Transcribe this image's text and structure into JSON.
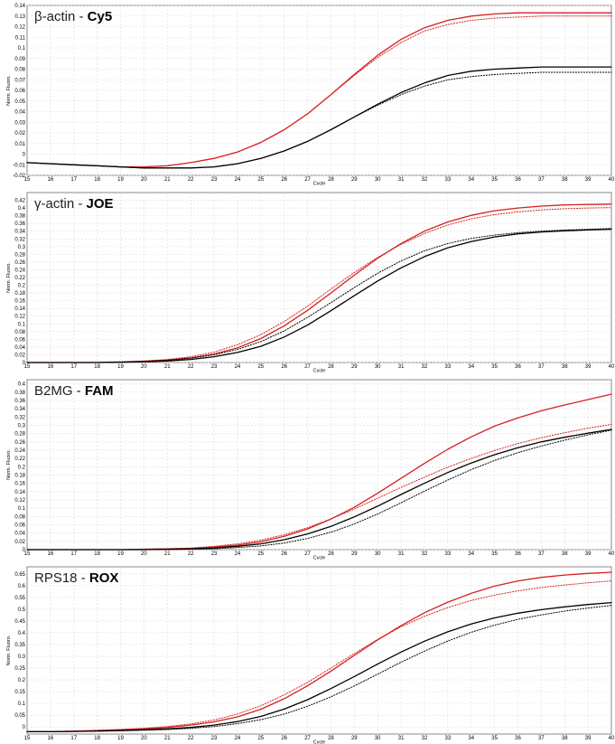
{
  "chart_data": [
    {
      "type": "line",
      "title_target": "β-actin",
      "title_sep": " - ",
      "title_dye": "Cy5",
      "xlabel": "Cycle",
      "ylabel": "Norm. Fluoro.",
      "xlim": [
        15,
        40
      ],
      "ylim": [
        -0.02,
        0.14
      ],
      "xticks": [
        "15",
        "16",
        "17",
        "18",
        "19",
        "20",
        "21",
        "22",
        "23",
        "24",
        "25",
        "26",
        "27",
        "28",
        "29",
        "30",
        "31",
        "32",
        "33",
        "34",
        "35",
        "36",
        "37",
        "38",
        "39",
        "40"
      ],
      "yticks": [
        "-0.02",
        "-0.01",
        "0",
        "0.01",
        "0.02",
        "0.03",
        "0.04",
        "0.05",
        "0.06",
        "0.07",
        "0.08",
        "0.09",
        "0.1",
        "0.11",
        "0.12",
        "0.13",
        "0.14"
      ],
      "x": [
        15,
        16,
        17,
        18,
        19,
        20,
        21,
        22,
        23,
        24,
        25,
        26,
        27,
        28,
        29,
        30,
        31,
        32,
        33,
        34,
        35,
        36,
        37,
        38,
        39,
        40
      ],
      "series": [
        {
          "color": "#d42020",
          "style": "solid",
          "values": [
            -0.008,
            -0.009,
            -0.01,
            -0.011,
            -0.012,
            -0.012,
            -0.011,
            -0.008,
            -0.004,
            0.002,
            0.011,
            0.023,
            0.038,
            0.056,
            0.075,
            0.093,
            0.108,
            0.119,
            0.126,
            0.13,
            0.132,
            0.133,
            0.133,
            0.133,
            0.133,
            0.133
          ]
        },
        {
          "color": "#d42020",
          "style": "dotted",
          "values": [
            -0.008,
            -0.009,
            -0.01,
            -0.011,
            -0.012,
            -0.012,
            -0.011,
            -0.008,
            -0.004,
            0.002,
            0.011,
            0.023,
            0.038,
            0.056,
            0.074,
            0.091,
            0.105,
            0.116,
            0.122,
            0.126,
            0.128,
            0.129,
            0.13,
            0.13,
            0.13,
            0.13
          ]
        },
        {
          "color": "#000000",
          "style": "solid",
          "values": [
            -0.008,
            -0.009,
            -0.01,
            -0.011,
            -0.012,
            -0.013,
            -0.013,
            -0.013,
            -0.012,
            -0.009,
            -0.004,
            0.003,
            0.012,
            0.023,
            0.035,
            0.047,
            0.058,
            0.067,
            0.074,
            0.078,
            0.08,
            0.081,
            0.082,
            0.082,
            0.082,
            0.082
          ]
        },
        {
          "color": "#000000",
          "style": "dotted",
          "values": [
            -0.008,
            -0.009,
            -0.01,
            -0.011,
            -0.012,
            -0.013,
            -0.013,
            -0.013,
            -0.012,
            -0.009,
            -0.004,
            0.003,
            0.012,
            0.023,
            0.035,
            0.046,
            0.056,
            0.064,
            0.07,
            0.073,
            0.075,
            0.076,
            0.077,
            0.077,
            0.077,
            0.077
          ]
        }
      ]
    },
    {
      "type": "line",
      "title_target": "γ-actin",
      "title_sep": " - ",
      "title_dye": "JOE",
      "xlabel": "Cycle",
      "ylabel": "Norm. Fluoro.",
      "xlim": [
        15,
        40
      ],
      "ylim": [
        0,
        0.44
      ],
      "xticks": [
        "15",
        "16",
        "17",
        "18",
        "19",
        "20",
        "21",
        "22",
        "23",
        "24",
        "25",
        "26",
        "27",
        "28",
        "29",
        "30",
        "31",
        "32",
        "33",
        "34",
        "35",
        "36",
        "37",
        "38",
        "39",
        "40"
      ],
      "yticks": [
        "0",
        "0.02",
        "0.04",
        "0.06",
        "0.08",
        "0.1",
        "0.12",
        "0.14",
        "0.16",
        "0.18",
        "0.2",
        "0.22",
        "0.24",
        "0.26",
        "0.28",
        "0.3",
        "0.32",
        "0.34",
        "0.36",
        "0.38",
        "0.4",
        "0.42"
      ],
      "x": [
        15,
        16,
        17,
        18,
        19,
        20,
        21,
        22,
        23,
        24,
        25,
        26,
        27,
        28,
        29,
        30,
        31,
        32,
        33,
        34,
        35,
        36,
        37,
        38,
        39,
        40
      ],
      "series": [
        {
          "color": "#d42020",
          "style": "solid",
          "values": [
            0,
            0,
            0,
            0,
            0.001,
            0.003,
            0.006,
            0.012,
            0.022,
            0.038,
            0.062,
            0.095,
            0.135,
            0.18,
            0.226,
            0.27,
            0.308,
            0.34,
            0.364,
            0.381,
            0.393,
            0.4,
            0.405,
            0.408,
            0.409,
            0.41
          ]
        },
        {
          "color": "#d42020",
          "style": "dotted",
          "values": [
            0,
            0,
            0,
            0,
            0.002,
            0.004,
            0.008,
            0.015,
            0.027,
            0.046,
            0.072,
            0.106,
            0.146,
            0.19,
            0.233,
            0.272,
            0.306,
            0.334,
            0.356,
            0.372,
            0.383,
            0.39,
            0.395,
            0.398,
            0.4,
            0.401
          ]
        },
        {
          "color": "#000000",
          "style": "solid",
          "values": [
            0,
            0,
            0,
            0,
            0.001,
            0.002,
            0.004,
            0.008,
            0.015,
            0.026,
            0.042,
            0.066,
            0.097,
            0.134,
            0.173,
            0.211,
            0.245,
            0.274,
            0.297,
            0.313,
            0.325,
            0.333,
            0.338,
            0.341,
            0.343,
            0.345
          ]
        },
        {
          "color": "#000000",
          "style": "dotted",
          "values": [
            0,
            0,
            0,
            0,
            0.001,
            0.003,
            0.006,
            0.011,
            0.02,
            0.034,
            0.054,
            0.082,
            0.117,
            0.155,
            0.194,
            0.231,
            0.263,
            0.289,
            0.308,
            0.321,
            0.33,
            0.336,
            0.34,
            0.343,
            0.345,
            0.347
          ]
        }
      ]
    },
    {
      "type": "line",
      "title_target": "B2MG",
      "title_sep": " - ",
      "title_dye": "FAM",
      "xlabel": "Cycle",
      "ylabel": "Norm. Fluoro.",
      "xlim": [
        15,
        40
      ],
      "ylim": [
        0,
        0.41
      ],
      "xticks": [
        "15",
        "16",
        "17",
        "18",
        "19",
        "20",
        "21",
        "22",
        "23",
        "24",
        "25",
        "26",
        "27",
        "28",
        "29",
        "30",
        "31",
        "32",
        "33",
        "34",
        "35",
        "36",
        "37",
        "38",
        "39",
        "40"
      ],
      "yticks": [
        "0",
        "0.02",
        "0.04",
        "0.06",
        "0.08",
        "0.1",
        "0.12",
        "0.14",
        "0.16",
        "0.18",
        "0.2",
        "0.22",
        "0.24",
        "0.26",
        "0.28",
        "0.3",
        "0.32",
        "0.34",
        "0.36",
        "0.38",
        "0.4"
      ],
      "x": [
        15,
        16,
        17,
        18,
        19,
        20,
        21,
        22,
        23,
        24,
        25,
        26,
        27,
        28,
        29,
        30,
        31,
        32,
        33,
        34,
        35,
        36,
        37,
        38,
        39,
        40
      ],
      "series": [
        {
          "color": "#d42020",
          "style": "solid",
          "values": [
            0,
            0,
            0,
            0,
            0,
            0.001,
            0.002,
            0.003,
            0.006,
            0.011,
            0.019,
            0.032,
            0.05,
            0.074,
            0.102,
            0.136,
            0.172,
            0.208,
            0.242,
            0.272,
            0.298,
            0.318,
            0.335,
            0.349,
            0.362,
            0.375
          ]
        },
        {
          "color": "#d42020",
          "style": "dotted",
          "values": [
            0,
            0,
            0,
            0,
            0,
            0.001,
            0.002,
            0.004,
            0.008,
            0.014,
            0.023,
            0.036,
            0.053,
            0.074,
            0.098,
            0.124,
            0.15,
            0.175,
            0.199,
            0.22,
            0.239,
            0.256,
            0.27,
            0.282,
            0.293,
            0.302
          ]
        },
        {
          "color": "#000000",
          "style": "solid",
          "values": [
            0,
            0,
            0,
            0,
            0,
            0,
            0.001,
            0.002,
            0.004,
            0.008,
            0.014,
            0.024,
            0.038,
            0.056,
            0.079,
            0.105,
            0.133,
            0.16,
            0.186,
            0.209,
            0.229,
            0.246,
            0.26,
            0.271,
            0.281,
            0.29
          ]
        },
        {
          "color": "#000000",
          "style": "dotted",
          "values": [
            0,
            0,
            0,
            0,
            0,
            0,
            0,
            0.001,
            0.002,
            0.005,
            0.009,
            0.016,
            0.027,
            0.042,
            0.062,
            0.086,
            0.113,
            0.141,
            0.168,
            0.193,
            0.215,
            0.234,
            0.25,
            0.264,
            0.277,
            0.288
          ]
        }
      ]
    },
    {
      "type": "line",
      "title_target": "RPS18",
      "title_sep": " - ",
      "title_dye": "ROX",
      "xlabel": "Cycle",
      "ylabel": "Norm. Fluoro.",
      "xlim": [
        15,
        40
      ],
      "ylim": [
        -0.03,
        0.68
      ],
      "xticks": [
        "15",
        "16",
        "17",
        "18",
        "19",
        "20",
        "21",
        "22",
        "23",
        "24",
        "25",
        "26",
        "27",
        "28",
        "29",
        "30",
        "31",
        "32",
        "33",
        "34",
        "35",
        "36",
        "37",
        "38",
        "39",
        "40"
      ],
      "yticks": [
        "0",
        "0.05",
        "0.1",
        "0.15",
        "0.2",
        "0.25",
        "0.3",
        "0.35",
        "0.4",
        "0.45",
        "0.5",
        "0.55",
        "0.6",
        "0.65"
      ],
      "x": [
        15,
        16,
        17,
        18,
        19,
        20,
        21,
        22,
        23,
        24,
        25,
        26,
        27,
        28,
        29,
        30,
        31,
        32,
        33,
        34,
        35,
        36,
        37,
        38,
        39,
        40
      ],
      "series": [
        {
          "color": "#d42020",
          "style": "solid",
          "values": [
            -0.02,
            -0.02,
            -0.018,
            -0.015,
            -0.012,
            -0.008,
            -0.002,
            0.008,
            0.022,
            0.043,
            0.075,
            0.12,
            0.175,
            0.237,
            0.304,
            0.37,
            0.43,
            0.485,
            0.53,
            0.567,
            0.598,
            0.62,
            0.635,
            0.645,
            0.652,
            0.657
          ]
        },
        {
          "color": "#d42020",
          "style": "dotted",
          "values": [
            -0.02,
            -0.02,
            -0.017,
            -0.014,
            -0.01,
            -0.005,
            0.002,
            0.013,
            0.03,
            0.055,
            0.09,
            0.136,
            0.19,
            0.25,
            0.312,
            0.372,
            0.425,
            0.47,
            0.507,
            0.537,
            0.56,
            0.578,
            0.592,
            0.603,
            0.612,
            0.62
          ]
        },
        {
          "color": "#000000",
          "style": "solid",
          "values": [
            -0.02,
            -0.02,
            -0.019,
            -0.017,
            -0.015,
            -0.012,
            -0.008,
            -0.002,
            0.008,
            0.023,
            0.045,
            0.076,
            0.116,
            0.163,
            0.214,
            0.267,
            0.318,
            0.364,
            0.404,
            0.437,
            0.463,
            0.483,
            0.498,
            0.51,
            0.52,
            0.528
          ]
        },
        {
          "color": "#000000",
          "style": "dotted",
          "values": [
            -0.02,
            -0.02,
            -0.019,
            -0.018,
            -0.016,
            -0.014,
            -0.011,
            -0.006,
            0.002,
            0.014,
            0.031,
            0.055,
            0.088,
            0.128,
            0.174,
            0.224,
            0.275,
            0.322,
            0.365,
            0.402,
            0.432,
            0.457,
            0.476,
            0.492,
            0.505,
            0.516
          ]
        }
      ]
    }
  ]
}
